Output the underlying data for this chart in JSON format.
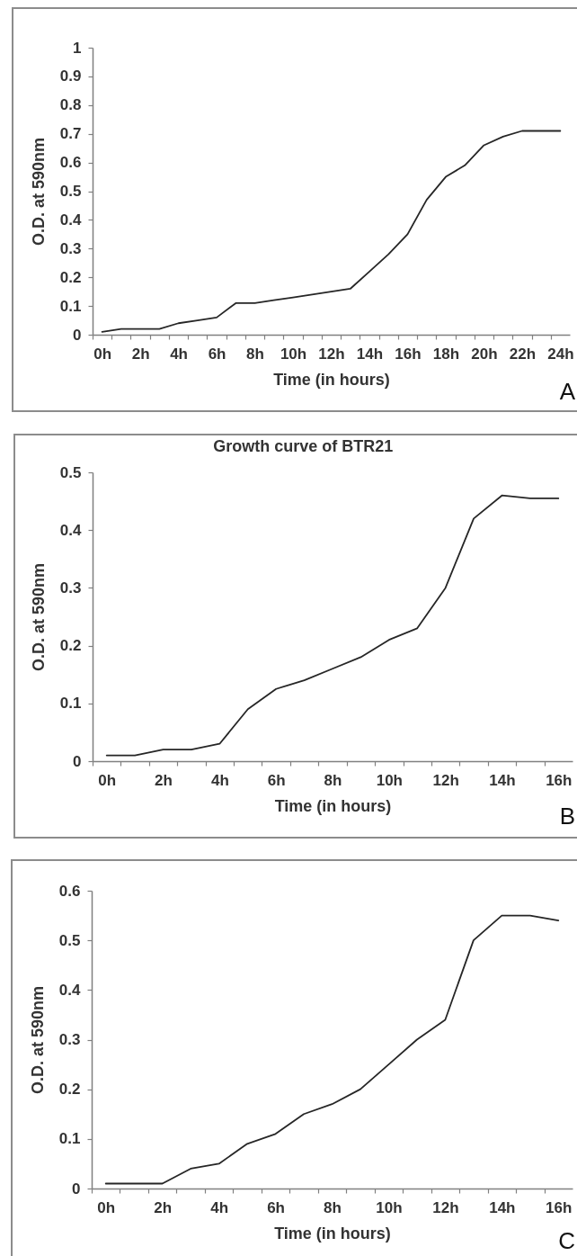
{
  "chart_data": [
    {
      "type": "line",
      "xlabel": "Time (in hours)",
      "ylabel": "O.D. at 590nm",
      "categories": [
        "0h",
        null,
        "2h",
        null,
        "4h",
        null,
        "6h",
        null,
        "8h",
        null,
        "10h",
        null,
        "12h",
        null,
        "14h",
        null,
        "16h",
        null,
        "18h",
        null,
        "20h",
        null,
        "22h",
        null,
        "24h"
      ],
      "values": [
        0.01,
        0.02,
        0.02,
        0.02,
        0.04,
        0.05,
        0.06,
        0.11,
        0.11,
        0.12,
        0.13,
        0.14,
        0.15,
        0.16,
        0.22,
        0.28,
        0.35,
        0.47,
        0.55,
        0.59,
        0.66,
        0.69,
        0.71,
        0.71,
        0.71
      ],
      "color": "#262626",
      "ylim": [
        0,
        1
      ],
      "yticks": [
        0,
        0.1,
        0.2,
        0.3,
        0.4,
        0.5,
        0.6,
        0.7,
        0.8,
        0.9,
        1
      ],
      "annotations": [
        "A"
      ]
    },
    {
      "type": "line",
      "title": "Growth curve of BTR21",
      "xlabel": "Time (in hours)",
      "ylabel": "O.D. at 590nm",
      "categories": [
        "0h",
        null,
        "2h",
        null,
        "4h",
        null,
        "6h",
        null,
        "8h",
        null,
        "10h",
        null,
        "12h",
        null,
        "14h",
        null,
        "16h"
      ],
      "values": [
        0.01,
        0.01,
        0.02,
        0.02,
        0.03,
        0.09,
        0.125,
        0.14,
        0.16,
        0.18,
        0.21,
        0.23,
        0.3,
        0.42,
        0.46,
        0.455,
        0.455
      ],
      "color": "#262626",
      "ylim": [
        0,
        0.5
      ],
      "yticks": [
        0,
        0.1,
        0.2,
        0.3,
        0.4,
        0.5
      ],
      "annotations": [
        "B"
      ]
    },
    {
      "type": "line",
      "xlabel": "Time (in hours)",
      "ylabel": "O.D. at 590nm",
      "categories": [
        "0h",
        null,
        "2h",
        null,
        "4h",
        null,
        "6h",
        null,
        "8h",
        null,
        "10h",
        null,
        "12h",
        null,
        "14h",
        null,
        "16h"
      ],
      "values": [
        0.01,
        0.01,
        0.01,
        0.04,
        0.05,
        0.09,
        0.11,
        0.15,
        0.17,
        0.2,
        0.25,
        0.3,
        0.34,
        0.5,
        0.55,
        0.55,
        0.54
      ],
      "color": "#262626",
      "ylim": [
        0,
        0.6
      ],
      "yticks": [
        0,
        0.1,
        0.2,
        0.3,
        0.4,
        0.5,
        0.6
      ],
      "annotations": [
        "C"
      ]
    }
  ]
}
